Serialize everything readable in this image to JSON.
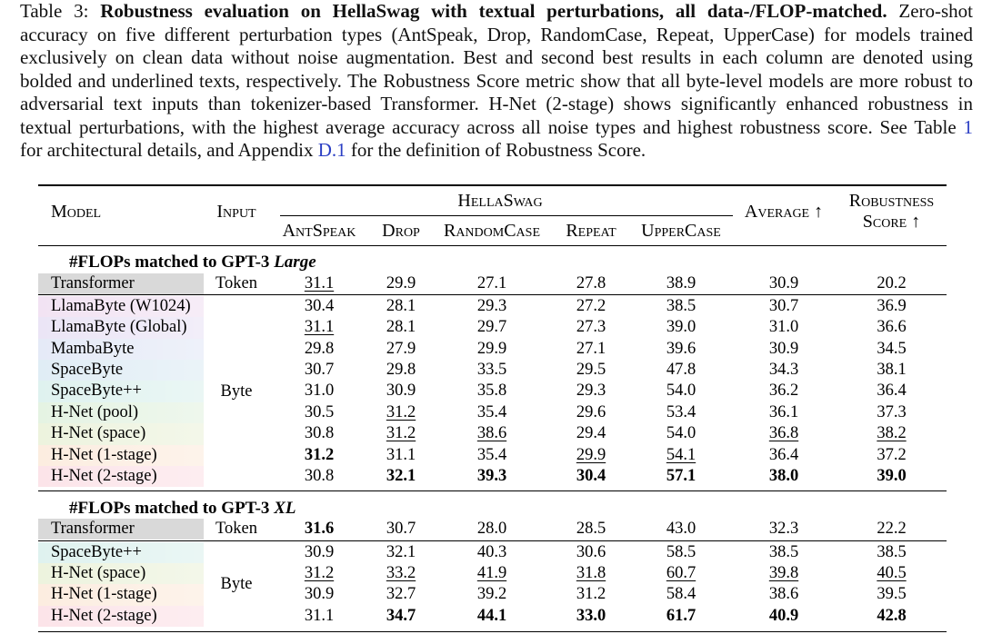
{
  "caption": {
    "label": "Table 3:",
    "title": "Robustness evaluation on HellaSwag with textual perturbations, all data-/FLOP-matched.",
    "line1_tail": "Zero-shot",
    "line2": "accuracy on five different perturbation types (AntSpeak, Drop, RandomCase, Repeat, UpperCase) for models trained",
    "line3": "exclusively on clean data without noise augmentation. Best and second best results in each column are denoted using",
    "line4": "bolded and underlined texts, respectively. The Robustness Score metric show that all byte-level models are more robust to",
    "line5": "adversarial text inputs than tokenizer-based Transformer. H-Net (2-stage) shows significantly enhanced robustness in",
    "line6": "textual perturbations, with the highest average accuracy across all noise types and highest robustness score. See Table",
    "line6_link": "1",
    "line7_pre": "for architectural details, and Appendix",
    "line7_link": "D.1",
    "line7_post": "for the definition of Robustness Score.",
    "link_color": "#2b3fc4"
  },
  "table": {
    "headers": {
      "model": "Model",
      "input": "Input",
      "group": "HellaSwag",
      "columns": [
        "AntSpeak",
        "Drop",
        "RandomCase",
        "Repeat",
        "UpperCase"
      ],
      "average": "Average ↑",
      "robustness_line1": "Robustness",
      "robustness_line2": "Score ↑"
    },
    "sections": [
      {
        "title": "#FLOPs matched to GPT-3",
        "title_emph": "Large",
        "token_row": {
          "model": "Transformer",
          "input": "Token",
          "color": "#d9d9d9",
          "values": [
            {
              "v": "31.1",
              "underline": true
            },
            {
              "v": "29.9"
            },
            {
              "v": "27.1"
            },
            {
              "v": "27.8"
            },
            {
              "v": "38.9"
            },
            {
              "v": "30.9"
            },
            {
              "v": "20.2"
            }
          ]
        },
        "byte_input": "Byte",
        "byte_rows": [
          {
            "model": "LlamaByte (W1024)",
            "color": "#f2e3f3",
            "values": [
              {
                "v": "30.4"
              },
              {
                "v": "28.1"
              },
              {
                "v": "29.3"
              },
              {
                "v": "27.2"
              },
              {
                "v": "38.5"
              },
              {
                "v": "30.7"
              },
              {
                "v": "36.9"
              }
            ]
          },
          {
            "model": "LlamaByte (Global)",
            "color": "#ebe5f6",
            "values": [
              {
                "v": "31.1",
                "underline": true
              },
              {
                "v": "28.1"
              },
              {
                "v": "29.7"
              },
              {
                "v": "27.3"
              },
              {
                "v": "39.0"
              },
              {
                "v": "31.0"
              },
              {
                "v": "36.6"
              }
            ]
          },
          {
            "model": "MambaByte",
            "color": "#e5eaf7",
            "values": [
              {
                "v": "29.8"
              },
              {
                "v": "27.9"
              },
              {
                "v": "29.9"
              },
              {
                "v": "27.1"
              },
              {
                "v": "39.6"
              },
              {
                "v": "30.9"
              },
              {
                "v": "34.5"
              }
            ]
          },
          {
            "model": "SpaceByte",
            "color": "#e0edf5",
            "values": [
              {
                "v": "30.7"
              },
              {
                "v": "29.8"
              },
              {
                "v": "33.5"
              },
              {
                "v": "29.5"
              },
              {
                "v": "47.8"
              },
              {
                "v": "34.3"
              },
              {
                "v": "38.1"
              }
            ]
          },
          {
            "model": "SpaceByte++",
            "color": "#dff2ef",
            "values": [
              {
                "v": "31.0"
              },
              {
                "v": "30.9"
              },
              {
                "v": "35.8"
              },
              {
                "v": "29.3"
              },
              {
                "v": "54.0"
              },
              {
                "v": "36.2"
              },
              {
                "v": "36.4"
              }
            ]
          },
          {
            "model": "H-Net (pool)",
            "color": "#e5f3e3",
            "values": [
              {
                "v": "30.5"
              },
              {
                "v": "31.2",
                "underline": true
              },
              {
                "v": "35.4"
              },
              {
                "v": "29.6"
              },
              {
                "v": "53.4"
              },
              {
                "v": "36.1"
              },
              {
                "v": "37.3"
              }
            ]
          },
          {
            "model": "H-Net (space)",
            "color": "#edf3de",
            "values": [
              {
                "v": "30.8"
              },
              {
                "v": "31.2",
                "underline": true
              },
              {
                "v": "38.6",
                "underline": true
              },
              {
                "v": "29.4"
              },
              {
                "v": "54.0"
              },
              {
                "v": "36.8",
                "underline": true
              },
              {
                "v": "38.2",
                "underline": true
              }
            ]
          },
          {
            "model": "H-Net (1-stage)",
            "color": "#fcede0",
            "values": [
              {
                "v": "31.2",
                "bold": true
              },
              {
                "v": "31.1"
              },
              {
                "v": "35.4"
              },
              {
                "v": "29.9",
                "underline": true
              },
              {
                "v": "54.1",
                "underline": true
              },
              {
                "v": "36.4"
              },
              {
                "v": "37.2"
              }
            ]
          },
          {
            "model": "H-Net (2-stage)",
            "color": "#fce4e9",
            "values": [
              {
                "v": "30.8"
              },
              {
                "v": "32.1",
                "bold": true
              },
              {
                "v": "39.3",
                "bold": true
              },
              {
                "v": "30.4",
                "bold": true
              },
              {
                "v": "57.1",
                "bold": true
              },
              {
                "v": "38.0",
                "bold": true
              },
              {
                "v": "39.0",
                "bold": true
              }
            ]
          }
        ]
      },
      {
        "title": "#FLOPs matched to GPT-3",
        "title_emph": "XL",
        "token_row": {
          "model": "Transformer",
          "input": "Token",
          "color": "#d9d9d9",
          "values": [
            {
              "v": "31.6",
              "bold": true
            },
            {
              "v": "30.7"
            },
            {
              "v": "28.0"
            },
            {
              "v": "28.5"
            },
            {
              "v": "43.0"
            },
            {
              "v": "32.3"
            },
            {
              "v": "22.2"
            }
          ]
        },
        "byte_input": "Byte",
        "byte_rows": [
          {
            "model": "SpaceByte++",
            "color": "#dff2ef",
            "values": [
              {
                "v": "30.9"
              },
              {
                "v": "32.1"
              },
              {
                "v": "40.3"
              },
              {
                "v": "30.6"
              },
              {
                "v": "58.5"
              },
              {
                "v": "38.5"
              },
              {
                "v": "38.5"
              }
            ]
          },
          {
            "model": "H-Net (space)",
            "color": "#edf3de",
            "values": [
              {
                "v": "31.2",
                "underline": true
              },
              {
                "v": "33.2",
                "underline": true
              },
              {
                "v": "41.9",
                "underline": true
              },
              {
                "v": "31.8",
                "underline": true
              },
              {
                "v": "60.7",
                "underline": true
              },
              {
                "v": "39.8",
                "underline": true
              },
              {
                "v": "40.5",
                "underline": true
              }
            ]
          },
          {
            "model": "H-Net (1-stage)",
            "color": "#fcede0",
            "values": [
              {
                "v": "30.9"
              },
              {
                "v": "32.7"
              },
              {
                "v": "39.2"
              },
              {
                "v": "31.2"
              },
              {
                "v": "58.4"
              },
              {
                "v": "38.6"
              },
              {
                "v": "39.5"
              }
            ]
          },
          {
            "model": "H-Net (2-stage)",
            "color": "#fce4e9",
            "values": [
              {
                "v": "31.1"
              },
              {
                "v": "34.7",
                "bold": true
              },
              {
                "v": "44.1",
                "bold": true
              },
              {
                "v": "33.0",
                "bold": true
              },
              {
                "v": "61.7",
                "bold": true
              },
              {
                "v": "40.9",
                "bold": true
              },
              {
                "v": "42.8",
                "bold": true
              }
            ]
          }
        ]
      }
    ]
  }
}
